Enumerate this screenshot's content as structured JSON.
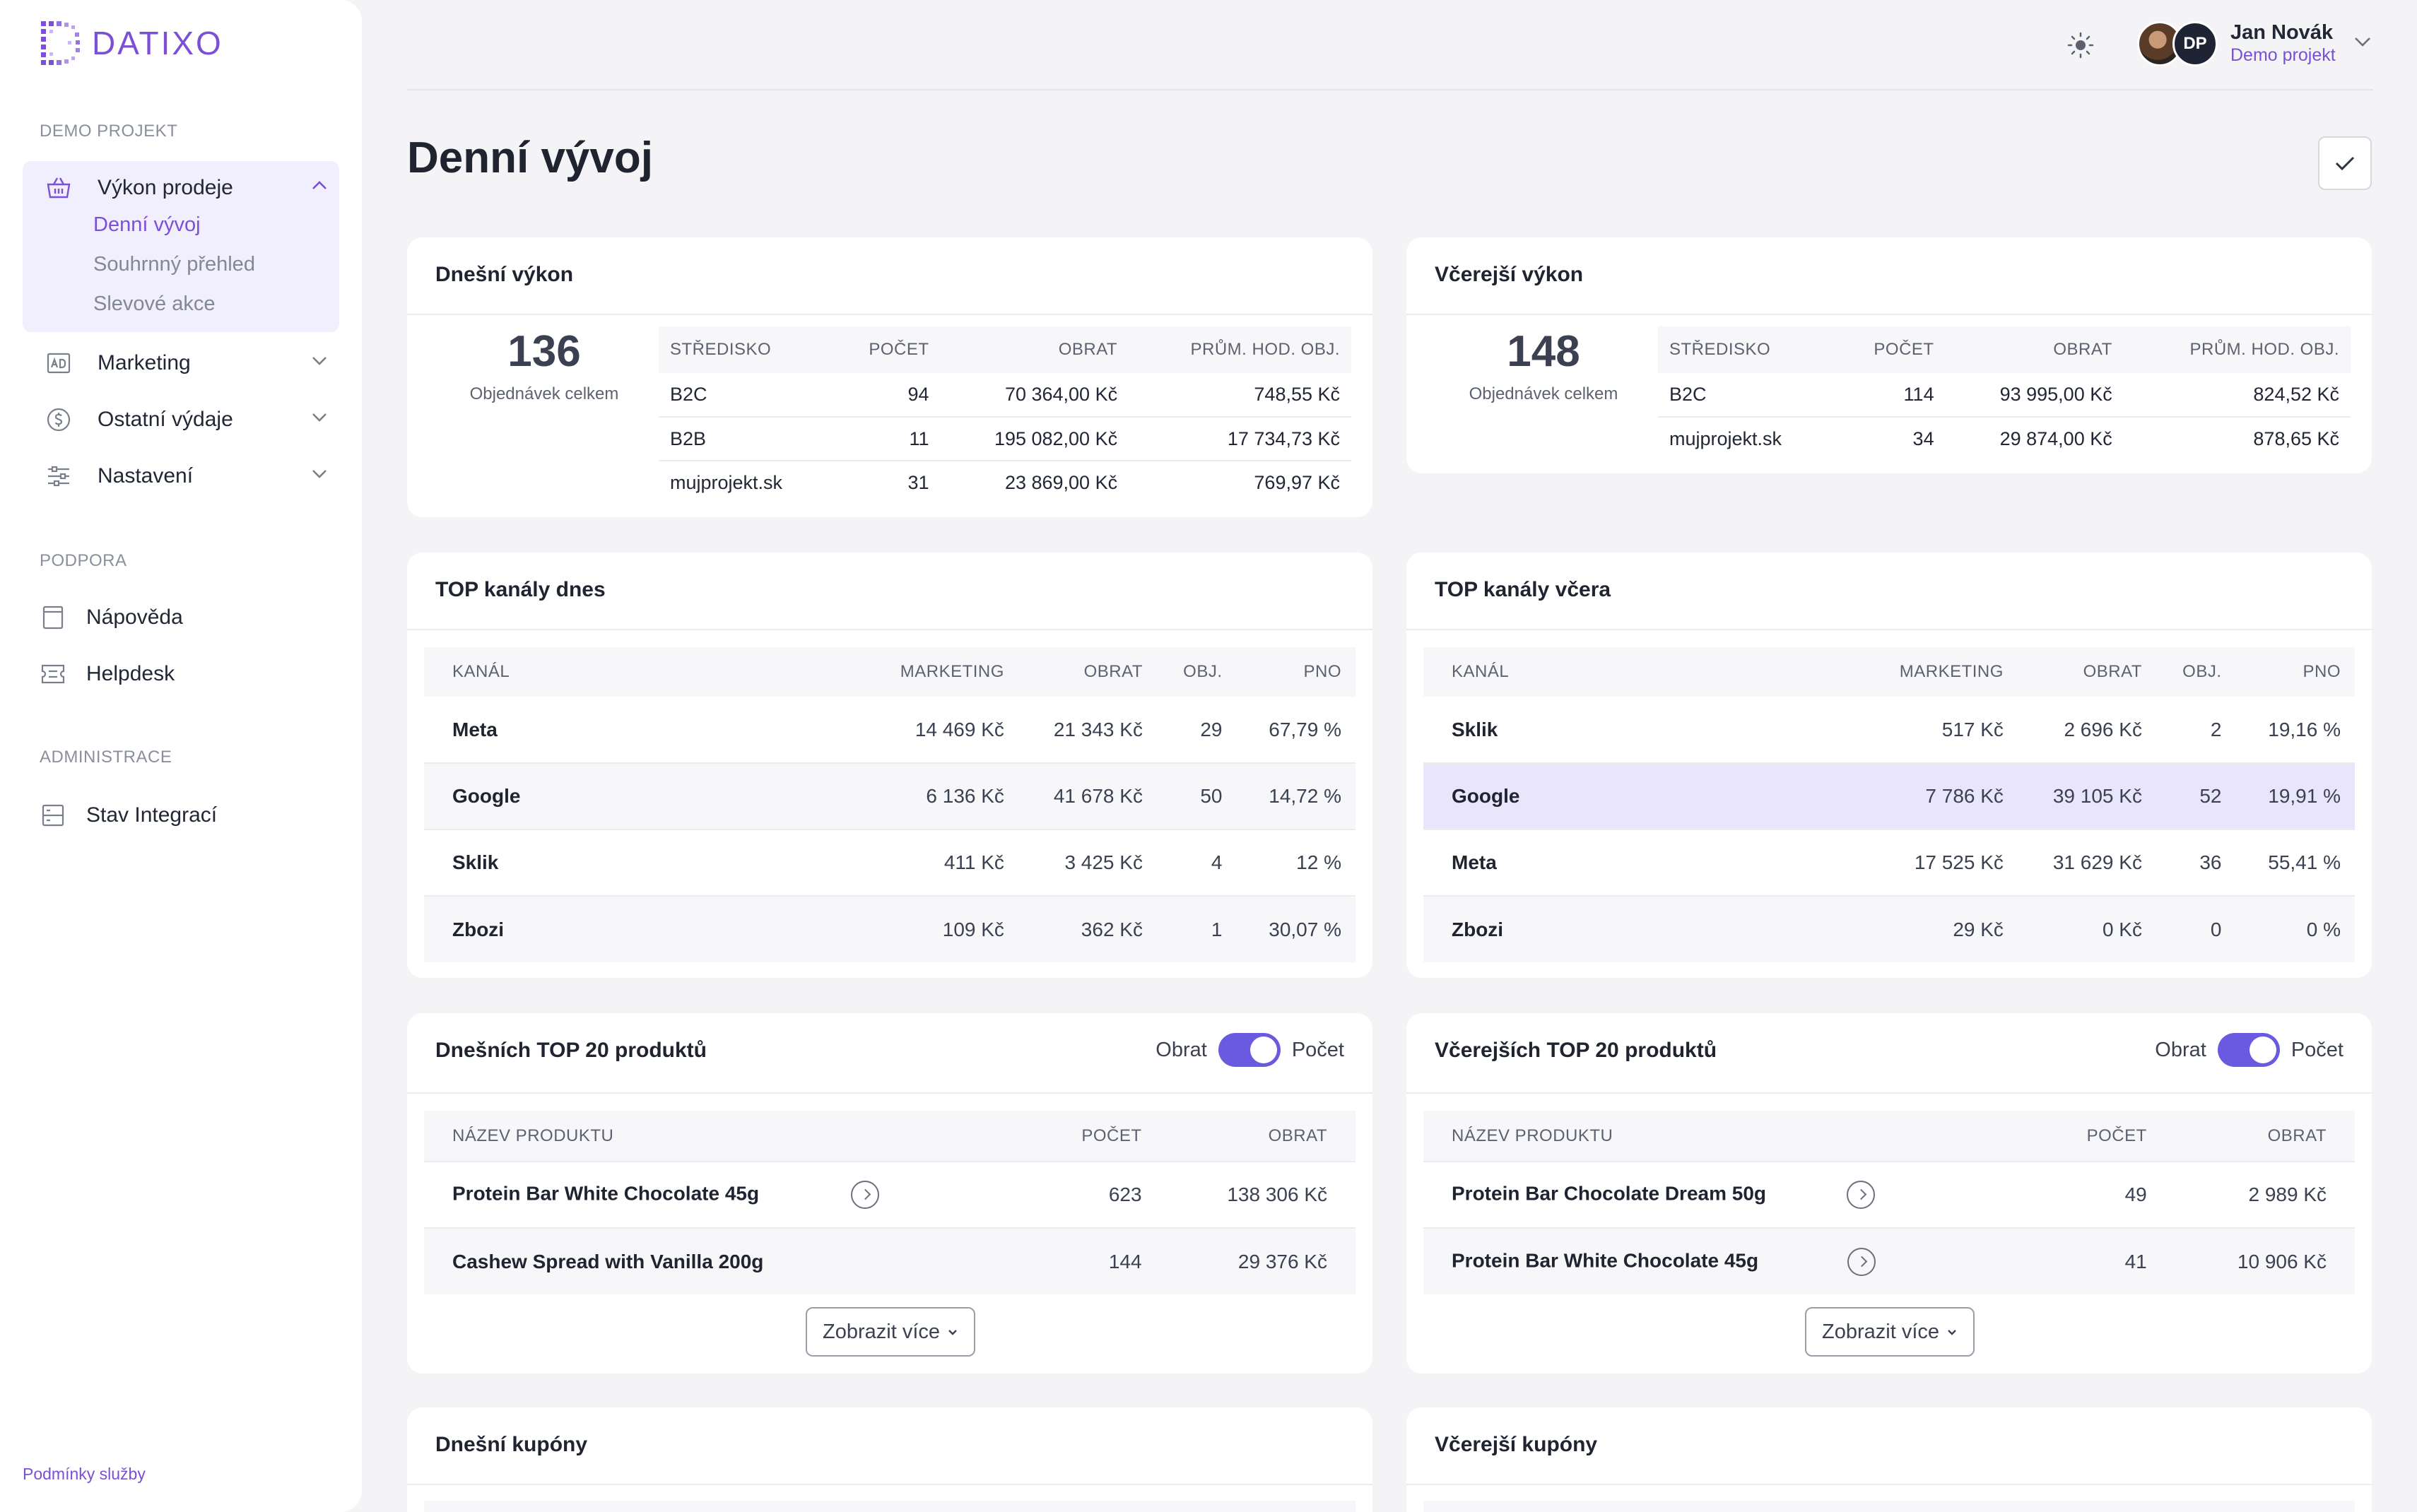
{
  "brand": {
    "name": "DATIXO"
  },
  "sidebar": {
    "section_project": "DEMO PROJEKT",
    "section_support": "PODPORA",
    "section_admin": "ADMINISTRACE",
    "sales": {
      "label": "Výkon prodeje",
      "subitems": [
        "Denní vývoj",
        "Souhrnný přehled",
        "Slevové akce"
      ]
    },
    "marketing": "Marketing",
    "other_costs": "Ostatní výdaje",
    "settings": "Nastavení",
    "help": "Nápověda",
    "helpdesk": "Helpdesk",
    "integrations": "Stav Integrací",
    "terms": "Podmínky služby"
  },
  "user": {
    "initials": "DP",
    "name": "Jan Novák",
    "project": "Demo projekt"
  },
  "page": {
    "title": "Denní vývoj"
  },
  "today_perf": {
    "title": "Dnešní výkon",
    "total": "136",
    "total_label": "Objednávek celkem",
    "headers": [
      "STŘEDISKO",
      "POČET",
      "OBRAT",
      "PRŮM. HOD. OBJ."
    ],
    "rows": [
      [
        "B2C",
        "94",
        "70 364,00 Kč",
        "748,55 Kč"
      ],
      [
        "B2B",
        "11",
        "195 082,00 Kč",
        "17 734,73 Kč"
      ],
      [
        "mujprojekt.sk",
        "31",
        "23 869,00 Kč",
        "769,97 Kč"
      ]
    ]
  },
  "yesterday_perf": {
    "title": "Včerejší výkon",
    "total": "148",
    "total_label": "Objednávek celkem",
    "headers": [
      "STŘEDISKO",
      "POČET",
      "OBRAT",
      "PRŮM. HOD. OBJ."
    ],
    "rows": [
      [
        "B2C",
        "114",
        "93 995,00 Kč",
        "824,52 Kč"
      ],
      [
        "mujprojekt.sk",
        "34",
        "29 874,00 Kč",
        "878,65 Kč"
      ]
    ]
  },
  "today_channels": {
    "title": "TOP kanály dnes",
    "headers": [
      "KANÁL",
      "MARKETING",
      "OBRAT",
      "OBJ.",
      "PNO"
    ],
    "rows": [
      [
        "Meta",
        "14 469 Kč",
        "21 343 Kč",
        "29",
        "67,79 %"
      ],
      [
        "Google",
        "6 136 Kč",
        "41 678 Kč",
        "50",
        "14,72 %"
      ],
      [
        "Sklik",
        "411 Kč",
        "3 425 Kč",
        "4",
        "12 %"
      ],
      [
        "Zbozi",
        "109 Kč",
        "362 Kč",
        "1",
        "30,07 %"
      ]
    ]
  },
  "yesterday_channels": {
    "title": "TOP kanály včera",
    "headers": [
      "KANÁL",
      "MARKETING",
      "OBRAT",
      "OBJ.",
      "PNO"
    ],
    "rows": [
      [
        "Sklik",
        "517 Kč",
        "2 696 Kč",
        "2",
        "19,16 %"
      ],
      [
        "Google",
        "7 786 Kč",
        "39 105 Kč",
        "52",
        "19,91 %"
      ],
      [
        "Meta",
        "17 525 Kč",
        "31 629 Kč",
        "36",
        "55,41 %"
      ],
      [
        "Zbozi",
        "29 Kč",
        "0 Kč",
        "0",
        "0 %"
      ]
    ]
  },
  "today_products": {
    "title": "Dnešních TOP 20 produktů",
    "toggle_left": "Obrat",
    "toggle_right": "Počet",
    "headers": [
      "NÁZEV PRODUKTU",
      "POČET",
      "OBRAT"
    ],
    "rows": [
      [
        "Protein Bar White Chocolate 45g",
        "623",
        "138 306 Kč"
      ],
      [
        "Cashew Spread with Vanilla 200g",
        "144",
        "29 376 Kč"
      ]
    ],
    "more": "Zobrazit více"
  },
  "yesterday_products": {
    "title": "Včerejších TOP 20 produktů",
    "toggle_left": "Obrat",
    "toggle_right": "Počet",
    "headers": [
      "NÁZEV PRODUKTU",
      "POČET",
      "OBRAT"
    ],
    "rows": [
      [
        "Protein Bar Chocolate Dream 50g",
        "49",
        "2 989 Kč"
      ],
      [
        "Protein Bar White Chocolate 45g",
        "41",
        "10 906 Kč"
      ]
    ],
    "more": "Zobrazit více"
  },
  "today_coupons": {
    "title": "Dnešní kupóny"
  },
  "yesterday_coupons": {
    "title": "Včerejší kupóny"
  }
}
